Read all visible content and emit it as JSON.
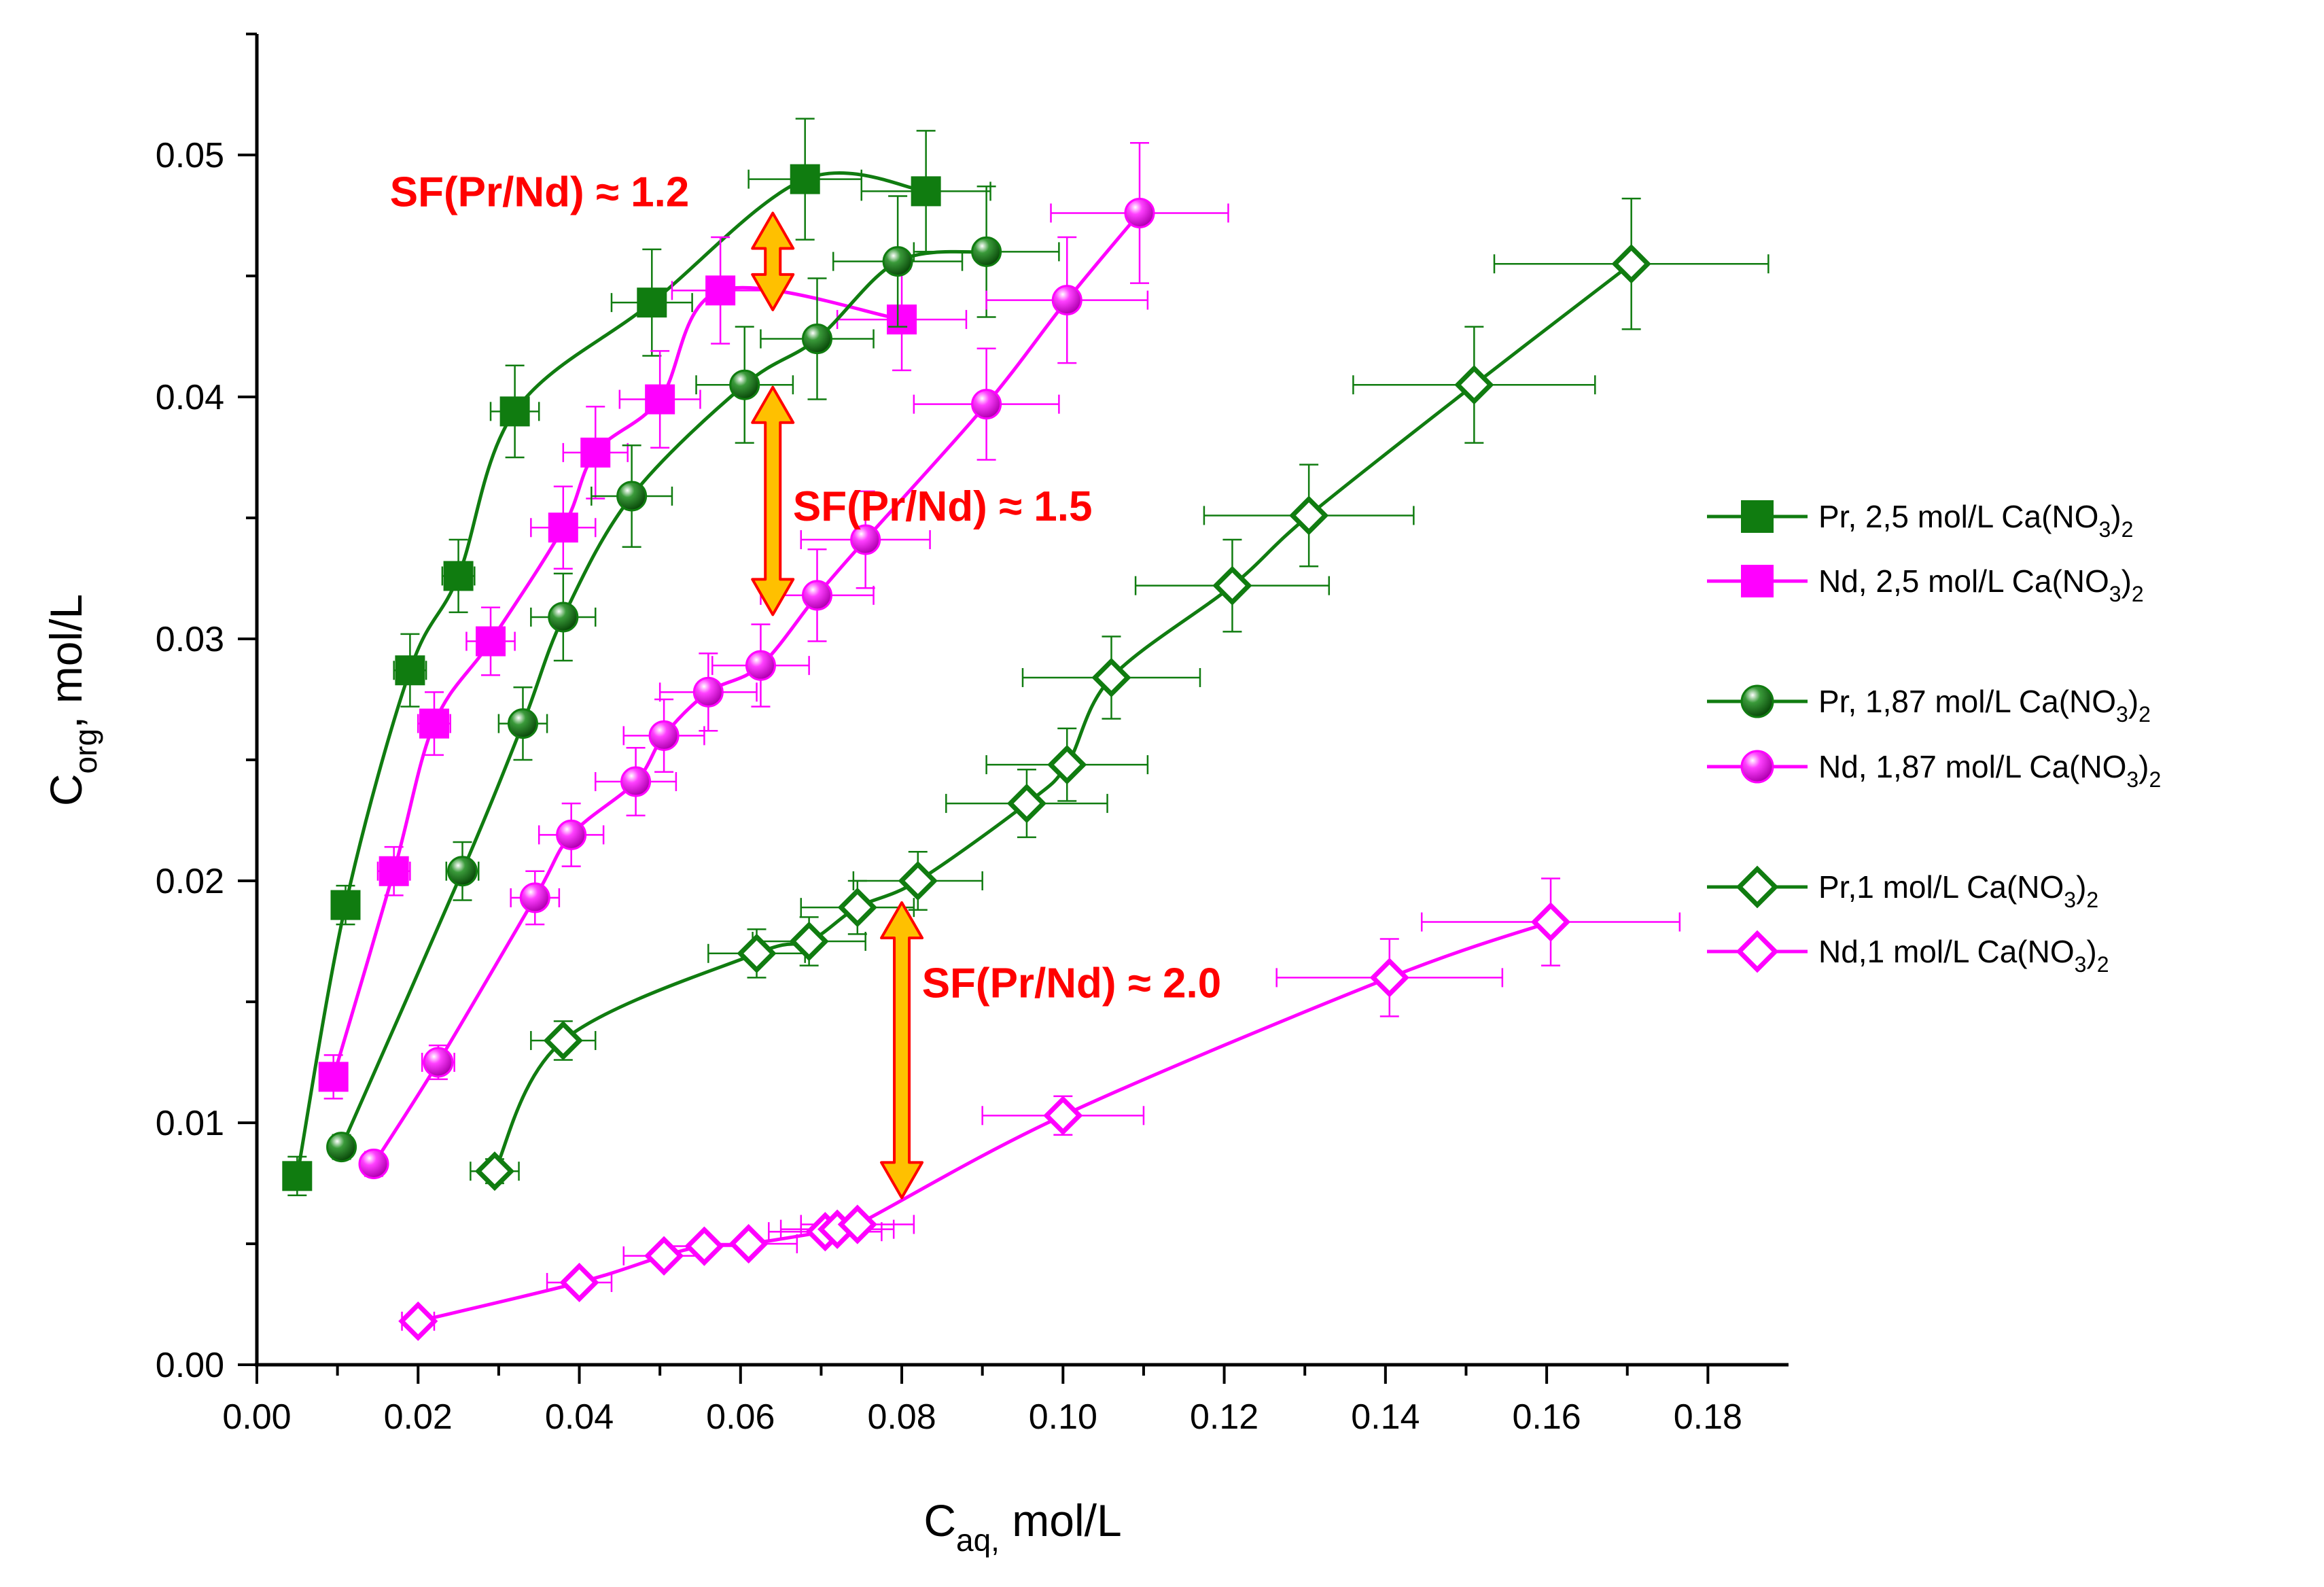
{
  "chart_data": {
    "type": "scatter",
    "title": "",
    "xlabel": "C",
    "xlabel_sub": "aq,",
    "xlabel_rest": " mol/L",
    "ylabel": "C",
    "ylabel_sub": "org",
    "ylabel_rest": ", mol/L",
    "xlim": [
      0.0,
      0.19
    ],
    "ylim": [
      0.0,
      0.055
    ],
    "x_ticks": [
      0.0,
      0.02,
      0.04,
      0.06,
      0.08,
      0.1,
      0.12,
      0.14,
      0.16,
      0.18
    ],
    "x_tick_labels": [
      "0.00",
      "0.02",
      "0.04",
      "0.06",
      "0.08",
      "0.10",
      "0.12",
      "0.14",
      "0.16",
      "0.18"
    ],
    "y_ticks": [
      0.0,
      0.01,
      0.02,
      0.03,
      0.04,
      0.05
    ],
    "y_tick_labels": [
      "0.00",
      "0.01",
      "0.02",
      "0.03",
      "0.04",
      "0.05"
    ],
    "grid": false,
    "legend_position": "right",
    "series": [
      {
        "name": "Pr, 2,5 mol/L Ca(NO3)2",
        "legend_label": [
          "Pr, 2,5 mol/L Ca(NO",
          "3",
          ")",
          "2"
        ],
        "color": "#107c10",
        "marker": "square-filled",
        "x": [
          0.005,
          0.011,
          0.019,
          0.025,
          0.032,
          0.049,
          0.068,
          0.083
        ],
        "y": [
          0.0078,
          0.019,
          0.0287,
          0.0326,
          0.0394,
          0.0439,
          0.049,
          0.0485
        ],
        "x_err": [
          0.001,
          0.001,
          0.002,
          0.002,
          0.003,
          0.005,
          0.007,
          0.008
        ],
        "y_err": [
          0.0008,
          0.0008,
          0.0015,
          0.0015,
          0.0019,
          0.0022,
          0.0025,
          0.0025
        ]
      },
      {
        "name": "Nd, 2,5 mol/L Ca(NO3)2",
        "legend_label": [
          "Nd, 2,5 mol/L Ca(NO",
          "3",
          ")",
          "2"
        ],
        "color": "#ff00ff",
        "marker": "square-filled",
        "x": [
          0.0095,
          0.017,
          0.022,
          0.029,
          0.038,
          0.042,
          0.05,
          0.0575,
          0.08
        ],
        "y": [
          0.0119,
          0.0204,
          0.0265,
          0.0299,
          0.0346,
          0.0377,
          0.0399,
          0.0444,
          0.0432
        ],
        "x_err": [
          0.001,
          0.002,
          0.002,
          0.003,
          0.004,
          0.004,
          0.005,
          0.006,
          0.008
        ],
        "y_err": [
          0.0009,
          0.001,
          0.0013,
          0.0014,
          0.0017,
          0.0019,
          0.002,
          0.0022,
          0.0021
        ]
      },
      {
        "name": "Pr, 1,87 mol/L Ca(NO3)2",
        "legend_label": [
          "Pr, 1,87 mol/L Ca(NO",
          "3",
          ")",
          "2"
        ],
        "color": "#107c10",
        "marker": "sphere",
        "x": [
          0.0105,
          0.0255,
          0.033,
          0.038,
          0.0465,
          0.0605,
          0.0695,
          0.0795,
          0.0905
        ],
        "y": [
          0.009,
          0.0204,
          0.0265,
          0.0309,
          0.0359,
          0.0405,
          0.0424,
          0.0456,
          0.046
        ],
        "x_err": [
          0.001,
          0.002,
          0.003,
          0.004,
          0.005,
          0.006,
          0.007,
          0.008,
          0.009
        ],
        "y_err": [
          0.0005,
          0.0012,
          0.0015,
          0.0018,
          0.0021,
          0.0024,
          0.0025,
          0.0027,
          0.0027
        ]
      },
      {
        "name": "Nd, 1,87 mol/L Ca(NO3)2",
        "legend_label": [
          "Nd, 1,87 mol/L Ca(NO",
          "3",
          ")",
          "2"
        ],
        "color": "#ff00ff",
        "marker": "sphere",
        "x": [
          0.0145,
          0.0225,
          0.0345,
          0.039,
          0.047,
          0.0505,
          0.056,
          0.0625,
          0.0695,
          0.0755,
          0.0905,
          0.1005,
          0.1095
        ],
        "y": [
          0.0083,
          0.0125,
          0.0193,
          0.0219,
          0.0241,
          0.026,
          0.0278,
          0.0289,
          0.0318,
          0.0341,
          0.0397,
          0.044,
          0.0476
        ],
        "x_err": [
          0.001,
          0.002,
          0.003,
          0.004,
          0.005,
          0.005,
          0.006,
          0.006,
          0.007,
          0.008,
          0.009,
          0.01,
          0.011
        ],
        "y_err": [
          0.0005,
          0.0007,
          0.0011,
          0.0013,
          0.0014,
          0.0015,
          0.0016,
          0.0017,
          0.0019,
          0.002,
          0.0023,
          0.0026,
          0.0029
        ]
      },
      {
        "name": "Pr,1 mol/L Ca(NO3)2",
        "legend_label": [
          "Pr,1 mol/L Ca(NO",
          "3",
          ")",
          "2"
        ],
        "color": "#107c10",
        "marker": "diamond-open",
        "x": [
          0.0295,
          0.038,
          0.062,
          0.0685,
          0.0745,
          0.082,
          0.0955,
          0.1005,
          0.106,
          0.121,
          0.1305,
          0.151,
          0.1705
        ],
        "y": [
          0.008,
          0.0134,
          0.017,
          0.0175,
          0.0189,
          0.02,
          0.0232,
          0.0248,
          0.0284,
          0.0322,
          0.0351,
          0.0405,
          0.0455
        ],
        "x_err": [
          0.003,
          0.004,
          0.006,
          0.007,
          0.007,
          0.008,
          0.01,
          0.01,
          0.011,
          0.012,
          0.013,
          0.015,
          0.017
        ],
        "y_err": [
          0.0005,
          0.0008,
          0.001,
          0.001,
          0.0011,
          0.0012,
          0.0014,
          0.0015,
          0.0017,
          0.0019,
          0.0021,
          0.0024,
          0.0027
        ]
      },
      {
        "name": "Nd,1 mol/L Ca(NO3)2",
        "legend_label": [
          "Nd,1 mol/L Ca(NO",
          "3",
          ")",
          "2"
        ],
        "color": "#ff00ff",
        "marker": "diamond-open",
        "x": [
          0.02,
          0.04,
          0.0505,
          0.0555,
          0.061,
          0.0705,
          0.072,
          0.0745,
          0.1,
          0.1405,
          0.1605
        ],
        "y": [
          0.0018,
          0.0034,
          0.0045,
          0.0049,
          0.005,
          0.0055,
          0.0056,
          0.0058,
          0.0103,
          0.016,
          0.0183
        ],
        "x_err": [
          0.002,
          0.004,
          0.005,
          0.005,
          0.006,
          0.007,
          0.007,
          0.007,
          0.01,
          0.014,
          0.016
        ],
        "y_err": [
          0.0003,
          0.0003,
          0.0003,
          0.0003,
          0.0003,
          0.0003,
          0.0003,
          0.0003,
          0.0008,
          0.0016,
          0.0018
        ]
      }
    ],
    "annotations": [
      {
        "text": "SF(Pr/Nd) ≈ 1.2",
        "x": 0.0165,
        "y": 0.0485,
        "arrow_x": 0.064,
        "arrow_y_from": 0.0476,
        "arrow_y_to": 0.0436
      },
      {
        "text": "SF(Pr/Nd) ≈ 1.5",
        "x": 0.0665,
        "y": 0.0355,
        "arrow_x": 0.064,
        "arrow_y_from": 0.0404,
        "arrow_y_to": 0.031
      },
      {
        "text": "SF(Pr/Nd) ≈ 2.0",
        "x": 0.0825,
        "y": 0.0158,
        "arrow_x": 0.08,
        "arrow_y_from": 0.0191,
        "arrow_y_to": 0.0069
      }
    ],
    "arrow_fill": "#ffc000",
    "arrow_stroke": "#ff0000"
  }
}
